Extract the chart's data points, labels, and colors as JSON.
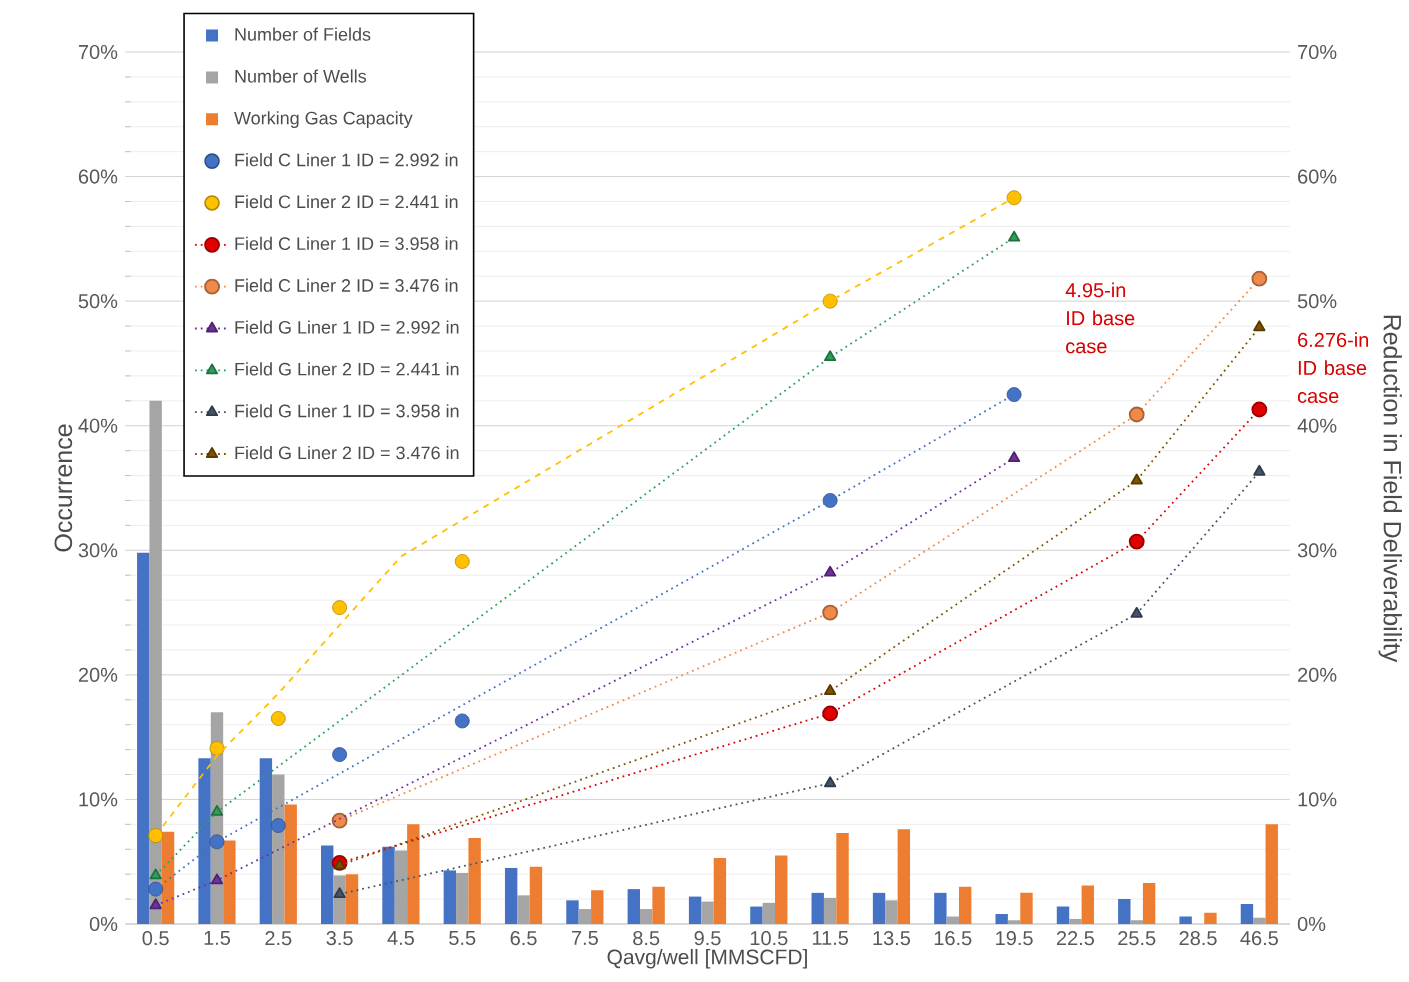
{
  "chart_data": {
    "type": "bar",
    "xlabel": "Qavg/well [MMSCFD]",
    "ylabel": "Occurrence",
    "y2label": "Reduction in Field Deliverability",
    "categories": [
      "0.5",
      "1.5",
      "2.5",
      "3.5",
      "4.5",
      "5.5",
      "6.5",
      "7.5",
      "8.5",
      "9.5",
      "10.5",
      "11.5",
      "13.5",
      "16.5",
      "19.5",
      "22.5",
      "25.5",
      "28.5",
      "46.5"
    ],
    "series": [
      {
        "name": "Number of Fields",
        "color": "#4472c4",
        "values": [
          29.8,
          13.3,
          13.3,
          6.3,
          6.2,
          4.3,
          4.5,
          1.9,
          2.8,
          2.2,
          1.4,
          2.5,
          2.5,
          2.5,
          0.8,
          1.4,
          2.0,
          0.6,
          1.6
        ]
      },
      {
        "name": "Number of Wells",
        "color": "#a5a5a5",
        "values": [
          42,
          17,
          12,
          3.9,
          5.9,
          4.1,
          2.3,
          1.2,
          1.2,
          1.8,
          1.7,
          2.1,
          1.9,
          0.6,
          0.3,
          0.4,
          0.3,
          0,
          0.5
        ]
      },
      {
        "name": "Working Gas Capacity",
        "color": "#ed7d31",
        "values": [
          7.4,
          6.7,
          9.6,
          4.0,
          8.0,
          6.9,
          4.6,
          2.7,
          3.0,
          5.3,
          5.5,
          7.3,
          7.6,
          3.0,
          2.5,
          3.1,
          3.3,
          0.9,
          8.0
        ]
      },
      {
        "name": "Field C Liner 1 ID = 2.992 in",
        "type": "scatter",
        "axis": "y2",
        "marker": "circle",
        "color": "#4472c4",
        "values": [
          2.8,
          6.6,
          7.9,
          13.6,
          null,
          16.3,
          null,
          null,
          null,
          null,
          null,
          34.0,
          null,
          null,
          42.5,
          null,
          null,
          null,
          null
        ]
      },
      {
        "name": "Field C Liner 2 ID = 2.441 in",
        "type": "scatter",
        "axis": "y2",
        "marker": "circle",
        "color": "#ffc000",
        "values": [
          7.1,
          14.1,
          16.5,
          25.4,
          null,
          29.1,
          null,
          null,
          null,
          null,
          null,
          50.0,
          null,
          null,
          58.3,
          null,
          null,
          null,
          null
        ]
      },
      {
        "name": "Field C Liner 1 ID = 3.958 in",
        "type": "line",
        "axis": "y2",
        "marker": "circle",
        "line_style": "dotted",
        "color": "#e00000",
        "values": [
          null,
          null,
          null,
          4.9,
          null,
          null,
          null,
          null,
          null,
          null,
          null,
          16.9,
          null,
          null,
          null,
          null,
          30.7,
          null,
          41.3
        ]
      },
      {
        "name": "Field C Liner 2 ID = 3.476 in",
        "type": "line",
        "axis": "y2",
        "marker": "circle",
        "line_style": "dotted",
        "color": "#f08a4b",
        "values": [
          null,
          null,
          null,
          8.3,
          null,
          null,
          null,
          null,
          null,
          null,
          null,
          25.0,
          null,
          null,
          null,
          null,
          40.9,
          null,
          51.8
        ]
      },
      {
        "name": "Field G Liner 1 ID = 2.992 in",
        "type": "line",
        "axis": "y2",
        "marker": "triangle",
        "line_style": "dotted",
        "color": "#7030a0",
        "values": [
          1.5,
          3.5,
          null,
          null,
          null,
          null,
          null,
          null,
          null,
          null,
          null,
          28.2,
          null,
          null,
          37.4,
          null,
          null,
          null,
          null
        ]
      },
      {
        "name": "Field G Liner 2 ID = 2.441 in",
        "type": "line",
        "axis": "y2",
        "marker": "triangle",
        "line_style": "dotted",
        "color": "#2ca05a",
        "values": [
          3.9,
          9.0,
          null,
          null,
          null,
          null,
          null,
          null,
          null,
          null,
          null,
          45.5,
          null,
          null,
          55.1,
          null,
          null,
          null,
          null
        ]
      },
      {
        "name": "Field G Liner 1 ID = 3.958 in",
        "type": "line",
        "axis": "y2",
        "marker": "triangle",
        "line_style": "dotted",
        "color": "#44546a",
        "values": [
          null,
          null,
          null,
          2.4,
          null,
          null,
          null,
          null,
          null,
          null,
          null,
          11.3,
          null,
          null,
          null,
          null,
          24.9,
          null,
          36.3
        ]
      },
      {
        "name": "Field G Liner 2 ID = 3.476 in",
        "type": "line",
        "axis": "y2",
        "marker": "triangle",
        "line_style": "dotted",
        "color": "#7f5200",
        "values": [
          null,
          null,
          null,
          4.7,
          null,
          null,
          null,
          null,
          null,
          null,
          null,
          18.7,
          null,
          null,
          null,
          null,
          35.6,
          null,
          47.9
        ]
      },
      {
        "type": "line",
        "axis": "y2",
        "marker": "none",
        "line_style": "dashed",
        "color": "#ffc000",
        "values": [
          7.1,
          13.5,
          18.5,
          null,
          29.5,
          null,
          null,
          null,
          null,
          null,
          null,
          50.0,
          null,
          null,
          58.3,
          null,
          null,
          null,
          null
        ]
      },
      {
        "type": "line",
        "axis": "y2",
        "marker": "none",
        "line_style": "dotted",
        "color": "#4472c4",
        "values": [
          2.8,
          6.6,
          null,
          null,
          null,
          null,
          null,
          null,
          null,
          null,
          null,
          34.0,
          null,
          null,
          42.5,
          null,
          null,
          null,
          null
        ]
      }
    ],
    "ylim": [
      0,
      70
    ],
    "yticks": [
      {
        "value": 0,
        "label": "0%"
      },
      {
        "value": 10,
        "label": "10%"
      },
      {
        "value": 20,
        "label": "20%"
      },
      {
        "value": 30,
        "label": "30%"
      },
      {
        "value": 40,
        "label": "40%"
      },
      {
        "value": 50,
        "label": "50%"
      },
      {
        "value": 60,
        "label": "60%"
      },
      {
        "value": 70,
        "label": "70%"
      }
    ],
    "y2lim": [
      0,
      70
    ],
    "y2ticks": [
      {
        "value": 0,
        "label": "0%"
      },
      {
        "value": 10,
        "label": "10%"
      },
      {
        "value": 20,
        "label": "20%"
      },
      {
        "value": 30,
        "label": "30%"
      },
      {
        "value": 40,
        "label": "40%"
      },
      {
        "value": 50,
        "label": "50%"
      },
      {
        "value": 60,
        "label": "60%"
      },
      {
        "value": 70,
        "label": "70%"
      }
    ],
    "annotations": [
      "4.95-in ID base case",
      "6.276-in ID base case"
    ],
    "grid": "y",
    "legend": "top left"
  }
}
